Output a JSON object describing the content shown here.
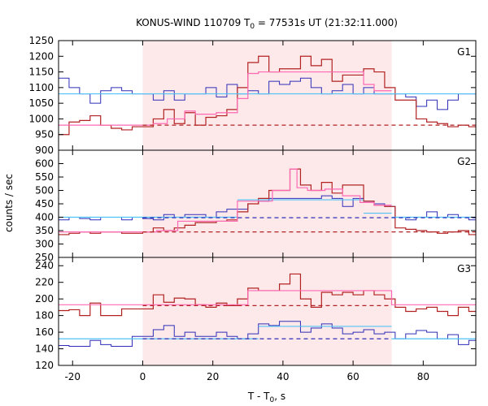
{
  "chart_data": {
    "type": "line",
    "title": "KONUS-WIND 110709 T",
    "title_sub": "0",
    "title_rest": " = 77531s UT (21:32:11.000)",
    "xlabel": "T - T",
    "xlabel_sub": "0",
    "xlabel_rest": ", s",
    "ylabel": "counts / sec",
    "xlim": [
      -24,
      95
    ],
    "x_ticks": [
      -20,
      0,
      20,
      40,
      60,
      80
    ],
    "x_tick_labels": [
      "-20",
      "0",
      "20",
      "40",
      "60",
      "80"
    ],
    "shaded_interval": [
      0,
      71
    ],
    "colors": {
      "total_outside": "#b22222",
      "total_inside": "#ff69b4",
      "background_dashed": "#b22222",
      "blue_signal": "#2e2eb8",
      "blue_fit": "#4fc3f7",
      "blue_dashed": "#2e2eb8",
      "shading": "#fde8ea"
    },
    "panels": [
      {
        "label": "G1",
        "ylim": [
          900,
          1250
        ],
        "y_ticks": [
          900,
          950,
          1000,
          1050,
          1100,
          1150,
          1200,
          1250
        ],
        "y_tick_labels": [
          "900",
          "950",
          "1000",
          "1050",
          "1100",
          "1150",
          "1200",
          "1250"
        ],
        "x_edges": [
          -24,
          -21,
          -18,
          -15,
          -12,
          -9,
          -6,
          -3,
          0,
          3,
          6,
          9,
          12,
          15,
          18,
          21,
          24,
          27,
          30,
          33,
          36,
          39,
          42,
          45,
          48,
          51,
          54,
          57,
          60,
          63,
          66,
          69,
          72,
          75,
          78,
          81,
          84,
          87,
          90,
          93,
          95
        ],
        "red_values": [
          950,
          990,
          995,
          1010,
          980,
          970,
          965,
          975,
          975,
          1000,
          1030,
          985,
          1020,
          980,
          1005,
          1010,
          1030,
          1100,
          1180,
          1200,
          1150,
          1160,
          1160,
          1200,
          1170,
          1190,
          1120,
          1140,
          1140,
          1160,
          1150,
          1100,
          1060,
          1060,
          1000,
          990,
          985,
          975,
          980,
          975
        ],
        "blue_values": [
          1130,
          1100,
          1080,
          1050,
          1090,
          1100,
          1090,
          1080,
          1080,
          1060,
          1090,
          1060,
          1080,
          1080,
          1100,
          1070,
          1110,
          1080,
          1090,
          1080,
          1120,
          1110,
          1120,
          1130,
          1100,
          1080,
          1090,
          1110,
          1080,
          1100,
          1080,
          1080,
          1080,
          1070,
          1040,
          1060,
          1030,
          1060,
          1080,
          1080
        ],
        "pink_steps": [
          {
            "x0": -24,
            "x1": 3,
            "y": 980
          },
          {
            "x0": 3,
            "x1": 7,
            "y": 985
          },
          {
            "x0": 7,
            "x1": 12,
            "y": 1000
          },
          {
            "x0": 12,
            "x1": 15,
            "y": 1025
          },
          {
            "x0": 15,
            "x1": 21,
            "y": 1015
          },
          {
            "x0": 21,
            "x1": 27,
            "y": 1020
          },
          {
            "x0": 27,
            "x1": 30,
            "y": 1065
          },
          {
            "x0": 30,
            "x1": 33,
            "y": 1145
          },
          {
            "x0": 33,
            "x1": 63,
            "y": 1150
          },
          {
            "x0": 63,
            "x1": 66,
            "y": 1110
          },
          {
            "x0": 66,
            "x1": 71,
            "y": 1090
          }
        ],
        "blue_fit": [
          {
            "x0": -24,
            "x1": 71,
            "y": 1080
          },
          {
            "x0": 71,
            "x1": 95,
            "y": 1080
          }
        ],
        "red_dashed": {
          "x0": 0,
          "x1": 95,
          "y": 980
        },
        "blue_dashed": null
      },
      {
        "label": "G2",
        "ylim": [
          250,
          650
        ],
        "y_ticks": [
          250,
          300,
          350,
          400,
          450,
          500,
          550,
          600
        ],
        "y_tick_labels": [
          "250",
          "300",
          "350",
          "400",
          "450",
          "500",
          "550",
          "600"
        ],
        "x_edges": [
          -24,
          -21,
          -18,
          -15,
          -12,
          -9,
          -6,
          -3,
          0,
          3,
          6,
          9,
          12,
          15,
          18,
          21,
          24,
          27,
          30,
          33,
          36,
          39,
          42,
          45,
          48,
          51,
          54,
          57,
          60,
          63,
          66,
          69,
          72,
          75,
          78,
          81,
          84,
          87,
          90,
          93,
          95
        ],
        "red_values": [
          335,
          340,
          345,
          340,
          345,
          345,
          340,
          340,
          345,
          360,
          350,
          360,
          370,
          380,
          380,
          385,
          390,
          420,
          450,
          470,
          500,
          500,
          580,
          520,
          500,
          530,
          490,
          520,
          520,
          460,
          445,
          440,
          360,
          355,
          350,
          345,
          340,
          345,
          350,
          335
        ],
        "blue_values": [
          390,
          400,
          395,
          390,
          400,
          400,
          390,
          400,
          395,
          390,
          410,
          400,
          410,
          410,
          400,
          420,
          430,
          430,
          450,
          460,
          470,
          470,
          470,
          470,
          470,
          480,
          470,
          440,
          470,
          460,
          450,
          440,
          400,
          390,
          400,
          420,
          400,
          410,
          400,
          390
        ],
        "pink_steps": [
          {
            "x0": -24,
            "x1": 4,
            "y": 345
          },
          {
            "x0": 4,
            "x1": 10,
            "y": 350
          },
          {
            "x0": 10,
            "x1": 27,
            "y": 385
          },
          {
            "x0": 27,
            "x1": 37,
            "y": 460
          },
          {
            "x0": 37,
            "x1": 42,
            "y": 500
          },
          {
            "x0": 42,
            "x1": 44,
            "y": 580
          },
          {
            "x0": 44,
            "x1": 47,
            "y": 510
          },
          {
            "x0": 47,
            "x1": 52,
            "y": 500
          },
          {
            "x0": 52,
            "x1": 57,
            "y": 505
          },
          {
            "x0": 57,
            "x1": 62,
            "y": 480
          },
          {
            "x0": 62,
            "x1": 66,
            "y": 455
          },
          {
            "x0": 66,
            "x1": 71,
            "y": 445
          }
        ],
        "blue_fit": [
          {
            "x0": -24,
            "x1": 27,
            "y": 400
          },
          {
            "x0": 27,
            "x1": 63,
            "y": 465
          },
          {
            "x0": 63,
            "x1": 71,
            "y": 415
          },
          {
            "x0": 71,
            "x1": 95,
            "y": 400
          }
        ],
        "red_dashed": {
          "x0": 0,
          "x1": 95,
          "y": 345
        },
        "blue_dashed": {
          "x0": 0,
          "x1": 95,
          "y": 398
        }
      },
      {
        "label": "G3",
        "ylim": [
          120,
          250
        ],
        "y_ticks": [
          120,
          140,
          160,
          180,
          200,
          220,
          240
        ],
        "y_tick_labels": [
          "120",
          "140",
          "160",
          "180",
          "200",
          "220",
          "240"
        ],
        "x_edges": [
          -24,
          -21,
          -18,
          -15,
          -12,
          -9,
          -6,
          -3,
          0,
          3,
          6,
          9,
          12,
          15,
          18,
          21,
          24,
          27,
          30,
          33,
          36,
          39,
          42,
          45,
          48,
          51,
          54,
          57,
          60,
          63,
          66,
          69,
          72,
          75,
          78,
          81,
          84,
          87,
          90,
          93,
          95
        ],
        "red_values": [
          186,
          187,
          180,
          195,
          180,
          180,
          188,
          188,
          188,
          205,
          196,
          201,
          200,
          193,
          190,
          195,
          192,
          200,
          213,
          210,
          210,
          218,
          230,
          200,
          190,
          208,
          205,
          208,
          205,
          210,
          205,
          200,
          190,
          185,
          188,
          190,
          185,
          180,
          190,
          185
        ],
        "blue_values": [
          144,
          143,
          143,
          150,
          145,
          143,
          143,
          155,
          155,
          163,
          168,
          155,
          160,
          155,
          155,
          160,
          155,
          152,
          158,
          170,
          168,
          173,
          173,
          160,
          165,
          170,
          165,
          158,
          160,
          163,
          158,
          160,
          152,
          158,
          162,
          160,
          152,
          157,
          145,
          150
        ],
        "pink_steps": [
          {
            "x0": -24,
            "x1": 30,
            "y": 193
          },
          {
            "x0": 30,
            "x1": 71,
            "y": 210
          },
          {
            "x0": 71,
            "x1": 95,
            "y": 193
          }
        ],
        "blue_fit": [
          {
            "x0": -24,
            "x1": 33,
            "y": 152
          },
          {
            "x0": 33,
            "x1": 71,
            "y": 167
          },
          {
            "x0": 71,
            "x1": 95,
            "y": 152
          }
        ],
        "red_dashed": {
          "x0": 0,
          "x1": 71,
          "y": 192
        },
        "blue_dashed": {
          "x0": 0,
          "x1": 71,
          "y": 152
        }
      }
    ]
  }
}
